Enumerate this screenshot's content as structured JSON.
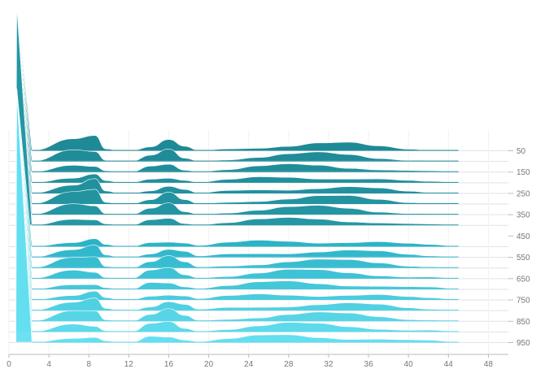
{
  "chart_data": {
    "type": "area",
    "title": "",
    "xlabel": "",
    "ylabel": "",
    "x_ticks": [
      "0",
      "4",
      "8",
      "12",
      "16",
      "20",
      "24",
      "28",
      "32",
      "36",
      "40",
      "44",
      "48"
    ],
    "xlim": [
      0,
      50
    ],
    "y_ticks": [
      "50",
      "150",
      "250",
      "350",
      "450",
      "550",
      "650",
      "750",
      "850",
      "950"
    ],
    "ylim": [
      0,
      1000
    ],
    "x_domain_end": 45,
    "series_rows_start": 50,
    "series_row_step": 50,
    "series_count": 19,
    "group_break_row": 450,
    "spike": {
      "x": [
        0.7,
        2.3
      ],
      "tip": 0
    },
    "profile_x": [
      2.3,
      6.5,
      8.6,
      9.7,
      11.0,
      12.3,
      14.2,
      16.0,
      17.6,
      19.0,
      22.0,
      25.0,
      28.0,
      31.0,
      34.0,
      37.0,
      40.0,
      42.0,
      45.0
    ],
    "profile_heights_first_group": [
      0,
      12,
      15,
      2,
      0,
      0,
      6,
      12,
      4,
      0,
      3,
      6,
      8,
      9,
      8,
      5,
      2,
      1,
      0
    ],
    "profile_heights_second_group": [
      0,
      10,
      12,
      2,
      0,
      0,
      8,
      12,
      6,
      1,
      4,
      7,
      9,
      9,
      8,
      6,
      3,
      2,
      0
    ],
    "colors": {
      "first_group_dark": "#1e8a96",
      "first_group_light": "#2a9fae",
      "second_group_dark": "#2cb3c7",
      "second_group_light": "#63dff0",
      "grid": "#e2e2e2",
      "axis": "#bbbbbb",
      "stroke": "#ffffff"
    }
  }
}
